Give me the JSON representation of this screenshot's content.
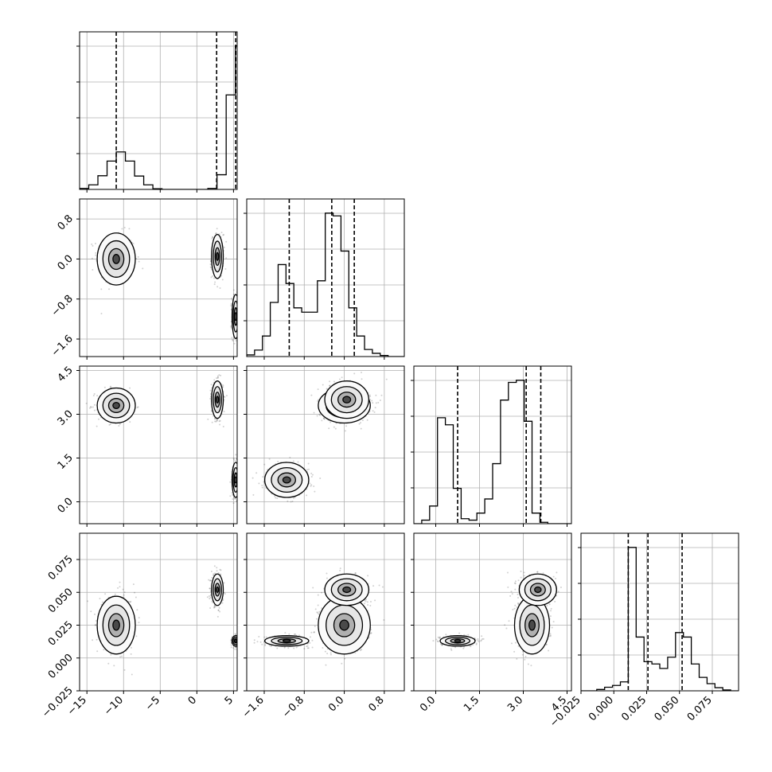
{
  "chart_data": {
    "type": "corner",
    "grid": true,
    "params": [
      {
        "range": [
          -16,
          5.5
        ],
        "ticks": [
          {
            "v": -15,
            "label": "−15"
          },
          {
            "v": -10,
            "label": "−10"
          },
          {
            "v": -5,
            "label": "−5"
          },
          {
            "v": 0,
            "label": "0"
          },
          {
            "v": 5,
            "label": "5"
          }
        ],
        "quantiles": [
          -11,
          2.7,
          5.3
        ],
        "hist": {
          "step": 1.25,
          "start": -16,
          "values": [
            0.3,
            1.4,
            4.2,
            8.7,
            11.5,
            8.7,
            4.1,
            1.4,
            0.2,
            0,
            0,
            0,
            0,
            0,
            0.3,
            4.5,
            29,
            44,
            44
          ]
        }
      },
      {
        "range": [
          -1.95,
          1.2
        ],
        "ticks": [
          {
            "v": -1.6,
            "label": "−1.6"
          },
          {
            "v": -0.8,
            "label": "−0.8"
          },
          {
            "v": 0.0,
            "label": "0.0"
          },
          {
            "v": 0.8,
            "label": "0.8"
          }
        ],
        "quantiles": [
          -1.1,
          -0.25,
          0.2
        ],
        "hist": {
          "step": 0.157,
          "start": -1.95,
          "values": [
            0.3,
            1.2,
            3.8,
            10,
            17,
            13.5,
            9,
            8.2,
            8.2,
            14,
            26.5,
            26,
            19.5,
            9,
            3.8,
            1.3,
            0.6,
            0.2,
            0,
            0
          ]
        }
      },
      {
        "range": [
          -0.75,
          4.65
        ],
        "ticks": [
          {
            "v": 0.0,
            "label": "0.0"
          },
          {
            "v": 1.5,
            "label": "1.5"
          },
          {
            "v": 3.0,
            "label": "3.0"
          },
          {
            "v": 4.5,
            "label": "4.5"
          }
        ],
        "quantiles": [
          0.75,
          3.1,
          3.6
        ],
        "hist": {
          "step": 0.27,
          "start": -0.75,
          "values": [
            0,
            0.5,
            2.5,
            15,
            14,
            5,
            0.7,
            0.5,
            1.5,
            3.5,
            8.5,
            17.5,
            20,
            20.3,
            14.5,
            1.5,
            0.2,
            0,
            0,
            0
          ]
        }
      },
      {
        "range": [
          -0.025,
          0.095
        ],
        "ticks": [
          {
            "v": -0.025,
            "label": "−0.025"
          },
          {
            "v": 0.0,
            "label": "0.000"
          },
          {
            "v": 0.025,
            "label": "0.025"
          },
          {
            "v": 0.05,
            "label": "0.050"
          },
          {
            "v": 0.075,
            "label": "0.075"
          }
        ],
        "quantiles": [
          0.011,
          0.026,
          0.052
        ],
        "hist": {
          "step": 0.006,
          "start": -0.025,
          "values": [
            0,
            0,
            0.3,
            0.8,
            1.2,
            2,
            32,
            12,
            6.5,
            6,
            5,
            7.5,
            13,
            12,
            6,
            3,
            1.6,
            0.7,
            0.2,
            0
          ]
        }
      }
    ],
    "modes": [
      {
        "mean": [
          -11,
          0.0,
          3.3,
          0.025
        ],
        "sd": [
          1.3,
          0.26,
          0.3,
          0.011
        ],
        "w": 0.34
      },
      {
        "mean": [
          2.8,
          0.05,
          3.5,
          0.052
        ],
        "sd": [
          0.4,
          0.22,
          0.32,
          0.006
        ],
        "w": 0.33
      },
      {
        "mean": [
          5.3,
          -1.15,
          0.75,
          0.013
        ],
        "sd": [
          0.25,
          0.22,
          0.3,
          0.002
        ],
        "w": 0.33
      }
    ]
  }
}
